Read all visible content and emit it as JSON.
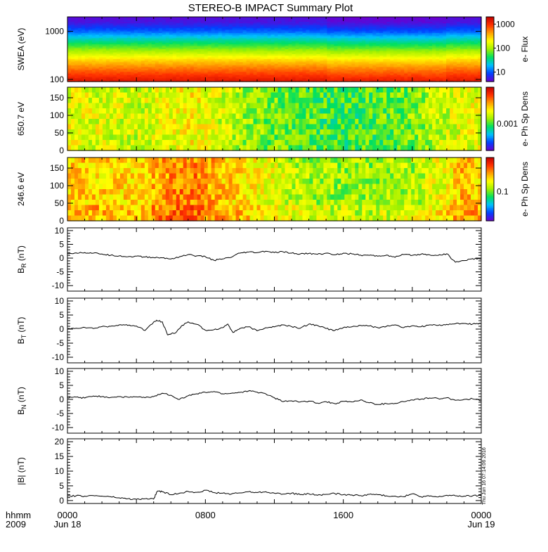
{
  "title": "STEREO-B IMPACT Summary Plot",
  "stamp": "Thu Jun 16 07:14:06 2016",
  "bottom_axis": {
    "row1_label": "hhmm",
    "row2_label": "2009",
    "ticks": [
      {
        "hours": 0,
        "label": "0000",
        "date": "Jun 18"
      },
      {
        "hours": 8,
        "label": "0800",
        "date": ""
      },
      {
        "hours": 16,
        "label": "1600",
        "date": ""
      },
      {
        "hours": 24,
        "label": "0000",
        "date": "Jun 19"
      }
    ]
  },
  "chart_data": [
    {
      "type": "heatmap",
      "ylabel": "SWEA (eV)",
      "yscale": "log",
      "ylim": [
        90,
        2000
      ],
      "ytick_values": [
        100,
        1000
      ],
      "ytick_labels": [
        "100",
        "1000"
      ],
      "colorbar": {
        "label": "e- Flux",
        "scale": "log",
        "range": [
          4,
          2000
        ],
        "tick_values": [
          10,
          100,
          1000
        ],
        "tick_labels": [
          "10",
          "100",
          "1000"
        ]
      },
      "colormap": [
        "#6a00d0",
        "#0040ff",
        "#00c0ff",
        "#00e060",
        "#a0f000",
        "#ffff00",
        "#ffa000",
        "#ff3000",
        "#c00000"
      ],
      "color_stops": [
        {
          "energy": 2000,
          "level": 0.02
        },
        {
          "energy": 1500,
          "level": 0.05
        },
        {
          "energy": 1000,
          "level": 0.16
        },
        {
          "energy": 700,
          "level": 0.3
        },
        {
          "energy": 500,
          "level": 0.42
        },
        {
          "energy": 350,
          "level": 0.55
        },
        {
          "energy": 250,
          "level": 0.68
        },
        {
          "energy": 180,
          "level": 0.78
        },
        {
          "energy": 130,
          "level": 0.86
        },
        {
          "energy": 100,
          "level": 0.92
        },
        {
          "energy": 90,
          "level": 0.94
        }
      ]
    },
    {
      "type": "heatmap",
      "ylabel": "650.7 eV",
      "ylim": [
        0,
        180
      ],
      "ytick_values": [
        0,
        50,
        100,
        150
      ],
      "ytick_labels": [
        "0",
        "50",
        "100",
        "150"
      ],
      "colorbar": {
        "label": "e- Ph Sp Dens",
        "tick_labels": [
          "0.001"
        ],
        "tick_levels": [
          0.42
        ]
      },
      "colormap": [
        "#6a00d0",
        "#0040ff",
        "#00c0ff",
        "#00e060",
        "#a0f000",
        "#ffff00",
        "#ffa000",
        "#ff3000",
        "#c00000"
      ],
      "color_levels": [
        {
          "hours": 0,
          "level": 0.6
        },
        {
          "hours": 2,
          "level": 0.58
        },
        {
          "hours": 4,
          "level": 0.56
        },
        {
          "hours": 6,
          "level": 0.6
        },
        {
          "hours": 7,
          "level": 0.64
        },
        {
          "hours": 8,
          "level": 0.6
        },
        {
          "hours": 10,
          "level": 0.52
        },
        {
          "hours": 12,
          "level": 0.46
        },
        {
          "hours": 14,
          "level": 0.44
        },
        {
          "hours": 16,
          "level": 0.42
        },
        {
          "hours": 18,
          "level": 0.44
        },
        {
          "hours": 20,
          "level": 0.48
        },
        {
          "hours": 22,
          "level": 0.56
        },
        {
          "hours": 24,
          "level": 0.6
        }
      ]
    },
    {
      "type": "heatmap",
      "ylabel": "246.6 eV",
      "ylim": [
        0,
        180
      ],
      "ytick_values": [
        0,
        50,
        100,
        150
      ],
      "ytick_labels": [
        "0",
        "50",
        "100",
        "150"
      ],
      "colorbar": {
        "label": "e- Ph Sp Dens",
        "tick_labels": [
          "0.1"
        ],
        "tick_levels": [
          0.46
        ]
      },
      "colormap": [
        "#6a00d0",
        "#0040ff",
        "#00c0ff",
        "#00e060",
        "#a0f000",
        "#ffff00",
        "#ffa000",
        "#ff3000",
        "#c00000"
      ],
      "color_levels": [
        {
          "hours": 0,
          "level": 0.7
        },
        {
          "hours": 2,
          "level": 0.68
        },
        {
          "hours": 4,
          "level": 0.66
        },
        {
          "hours": 6,
          "level": 0.76
        },
        {
          "hours": 7,
          "level": 0.8
        },
        {
          "hours": 8,
          "level": 0.74
        },
        {
          "hours": 10,
          "level": 0.66
        },
        {
          "hours": 12,
          "level": 0.58
        },
        {
          "hours": 14,
          "level": 0.52
        },
        {
          "hours": 16,
          "level": 0.5
        },
        {
          "hours": 18,
          "level": 0.5
        },
        {
          "hours": 20,
          "level": 0.52
        },
        {
          "hours": 22,
          "level": 0.62
        },
        {
          "hours": 23,
          "level": 0.72
        },
        {
          "hours": 24,
          "level": 0.66
        }
      ]
    },
    {
      "type": "line",
      "ylabel_main": "B",
      "ylabel_sub": "R",
      "ylabel_unit": " (nT)",
      "ylim": [
        -12,
        11
      ],
      "ytick_labels": [
        "-10",
        "-5",
        "0",
        "5",
        "10"
      ],
      "ytick_values": [
        -10,
        -5,
        0,
        5,
        10
      ],
      "x": [
        0,
        0.5,
        1,
        1.5,
        2,
        2.5,
        3,
        3.5,
        4,
        4.5,
        5,
        5.5,
        6,
        6.5,
        7,
        7.5,
        8,
        8.5,
        9,
        9.5,
        10,
        10.5,
        11,
        11.5,
        12,
        12.5,
        13,
        13.5,
        14,
        14.5,
        15,
        15.5,
        16,
        16.5,
        17,
        17.5,
        18,
        18.5,
        19,
        19.5,
        20,
        20.5,
        21,
        21.5,
        22,
        22.5,
        23,
        23.5,
        24
      ],
      "y": [
        1.7,
        1.9,
        2.0,
        1.8,
        1.5,
        1.0,
        0.8,
        0.5,
        0.7,
        0.4,
        0.2,
        0.1,
        -0.3,
        0.5,
        1.3,
        0.8,
        0.5,
        -0.8,
        -0.3,
        0.3,
        1.8,
        2.2,
        2.0,
        2.5,
        2.0,
        2.3,
        1.8,
        1.5,
        1.7,
        1.4,
        1.8,
        1.2,
        1.8,
        1.5,
        1.1,
        1.0,
        0.7,
        1.1,
        0.3,
        1.3,
        1.0,
        1.4,
        1.2,
        1.0,
        1.6,
        -1.5,
        -0.9,
        -0.2,
        -0.3
      ]
    },
    {
      "type": "line",
      "ylabel_main": "B",
      "ylabel_sub": "T",
      "ylabel_unit": " (nT)",
      "ylim": [
        -12,
        11
      ],
      "ytick_labels": [
        "-10",
        "-5",
        "0",
        "5",
        "10"
      ],
      "ytick_values": [
        -10,
        -5,
        0,
        5,
        10
      ],
      "x": [
        0,
        0.5,
        1,
        1.5,
        2,
        2.5,
        3,
        3.5,
        4,
        4.5,
        5,
        5.2,
        5.5,
        5.8,
        6,
        6.3,
        6.6,
        7,
        7.5,
        8,
        8.5,
        9,
        9.3,
        9.6,
        10,
        10.5,
        11,
        11.5,
        12,
        12.5,
        13,
        13.5,
        14,
        14.5,
        15,
        15.5,
        16,
        16.5,
        17,
        17.5,
        18,
        18.5,
        19,
        19.5,
        20,
        20.5,
        21,
        21.5,
        22,
        22.5,
        23,
        23.5,
        24
      ],
      "y": [
        0.0,
        0.3,
        0.6,
        0.2,
        0.9,
        1.0,
        1.5,
        1.3,
        1.1,
        -0.5,
        2.5,
        3.0,
        2.6,
        -2.0,
        -1.8,
        -1.2,
        1.0,
        2.6,
        1.7,
        -0.4,
        -0.2,
        0.5,
        1.8,
        -1.2,
        0.2,
        0.8,
        -0.6,
        0.5,
        0.8,
        1.5,
        0.9,
        0.3,
        1.8,
        1.3,
        0.2,
        -0.5,
        0.5,
        0.8,
        1.3,
        1.1,
        0.5,
        1.0,
        1.5,
        0.5,
        1.2,
        0.8,
        1.5,
        1.3,
        1.7,
        1.9,
        2.0,
        1.8,
        1.9
      ]
    },
    {
      "type": "line",
      "ylabel_main": "B",
      "ylabel_sub": "N",
      "ylabel_unit": " (nT)",
      "ylim": [
        -12,
        11
      ],
      "ytick_labels": [
        "-10",
        "-5",
        "0",
        "5",
        "10"
      ],
      "ytick_values": [
        -10,
        -5,
        0,
        5,
        10
      ],
      "x": [
        0,
        0.5,
        1,
        1.5,
        2,
        2.5,
        3,
        3.5,
        4,
        4.5,
        5,
        5.5,
        6,
        6.5,
        7,
        7.5,
        8,
        8.5,
        9,
        9.5,
        10,
        10.5,
        11,
        11.5,
        12,
        12.5,
        13,
        13.5,
        14,
        14.5,
        15,
        15.5,
        16,
        16.5,
        17,
        17.5,
        18,
        18.5,
        19,
        19.5,
        20,
        20.5,
        21,
        21.5,
        22,
        22.5,
        23,
        23.5,
        24
      ],
      "y": [
        0.6,
        0.8,
        0.5,
        1.2,
        1.0,
        0.7,
        1.0,
        0.8,
        0.9,
        0.6,
        1.0,
        2.2,
        1.5,
        0.0,
        1.3,
        2.0,
        2.5,
        2.8,
        2.0,
        2.2,
        2.5,
        3.0,
        2.6,
        2.0,
        0.6,
        -0.8,
        -0.5,
        -0.9,
        -0.6,
        -1.3,
        -0.8,
        -1.5,
        -0.7,
        -0.9,
        -0.2,
        -1.2,
        -1.8,
        -1.5,
        -1.4,
        -0.8,
        -0.2,
        0.1,
        0.5,
        0.3,
        0.6,
        -0.3,
        0.0,
        0.2,
        -0.4
      ]
    },
    {
      "type": "line",
      "ylabel_main": "|B|",
      "ylabel_sub": "",
      "ylabel_unit": " (nT)",
      "ylim": [
        -1,
        21
      ],
      "ytick_labels": [
        "0",
        "5",
        "10",
        "15",
        "20"
      ],
      "ytick_values": [
        0,
        5,
        10,
        15,
        20
      ],
      "x": [
        0,
        0.5,
        1,
        1.5,
        2,
        2.5,
        3,
        3.5,
        4,
        4.5,
        5,
        5.2,
        5.5,
        6,
        6.5,
        7,
        7.5,
        8,
        8.5,
        9,
        9.5,
        10,
        10.5,
        11,
        11.5,
        12,
        12.5,
        13,
        13.5,
        14,
        14.5,
        15,
        15.5,
        16,
        16.5,
        17,
        17.5,
        18,
        18.5,
        19,
        19.5,
        20,
        20.5,
        21,
        21.5,
        22,
        22.5,
        23,
        23.5,
        24
      ],
      "y": [
        1.5,
        1.6,
        1.5,
        1.7,
        1.5,
        1.3,
        0.9,
        0.6,
        0.4,
        0.6,
        0.5,
        3.1,
        3.0,
        2.0,
        2.5,
        3.1,
        2.8,
        3.5,
        2.7,
        2.5,
        2.2,
        2.6,
        3.0,
        2.7,
        3.0,
        2.5,
        2.2,
        2.5,
        2.0,
        2.3,
        1.8,
        2.1,
        2.4,
        2.0,
        1.9,
        1.7,
        2.1,
        2.0,
        1.6,
        1.5,
        1.3,
        2.3,
        1.3,
        1.5,
        1.2,
        1.8,
        1.6,
        1.5,
        1.6,
        1.7
      ]
    }
  ]
}
